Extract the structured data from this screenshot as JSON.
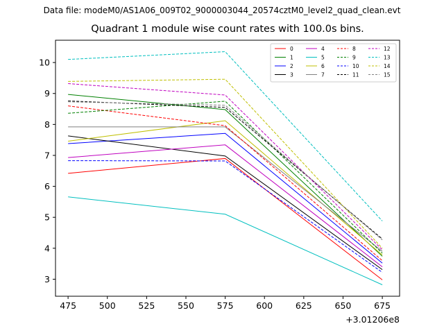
{
  "suptitle": "Data file: modeM0/AS1A06_009T02_9000003044_20574cztM0_level2_quad_clean.evt",
  "chart_data": {
    "type": "line",
    "title": "Quadrant 1 module wise count rates with 100.0s bins.",
    "xlabel": "",
    "ylabel": "",
    "x": [
      475,
      575,
      675
    ],
    "x_offset_label": "+3.01206e8",
    "xlim": [
      467,
      686
    ],
    "ylim": [
      2.45,
      10.72
    ],
    "xticks": [
      "475",
      "500",
      "525",
      "550",
      "575",
      "600",
      "625",
      "650",
      "675"
    ],
    "yticks": [
      "3",
      "4",
      "5",
      "6",
      "7",
      "8",
      "9",
      "10"
    ],
    "legend_position": "top-right",
    "series": [
      {
        "name": "0",
        "color": "#ff0000",
        "dash": "solid",
        "values": [
          6.42,
          6.9,
          2.98
        ]
      },
      {
        "name": "1",
        "color": "#008000",
        "dash": "solid",
        "values": [
          8.97,
          8.48,
          3.74
        ]
      },
      {
        "name": "2",
        "color": "#0000ff",
        "dash": "solid",
        "values": [
          7.38,
          7.71,
          3.52
        ]
      },
      {
        "name": "3",
        "color": "#000000",
        "dash": "solid",
        "values": [
          7.63,
          6.98,
          3.31
        ]
      },
      {
        "name": "4",
        "color": "#bf00bf",
        "dash": "solid",
        "values": [
          6.93,
          7.34,
          3.4
        ]
      },
      {
        "name": "5",
        "color": "#00bfbf",
        "dash": "solid",
        "values": [
          5.66,
          5.1,
          2.82
        ]
      },
      {
        "name": "6",
        "color": "#bfbf00",
        "dash": "solid",
        "values": [
          7.46,
          8.12,
          3.78
        ]
      },
      {
        "name": "7",
        "color": "#808080",
        "dash": "solid",
        "values": [
          7.92,
          7.92,
          3.9
        ]
      },
      {
        "name": "8",
        "color": "#ff0000",
        "dash": "dashed",
        "values": [
          8.6,
          7.96,
          3.6
        ]
      },
      {
        "name": "9",
        "color": "#008000",
        "dash": "dashed",
        "values": [
          8.36,
          8.75,
          3.84
        ]
      },
      {
        "name": "10",
        "color": "#0000ff",
        "dash": "dashed",
        "values": [
          6.83,
          6.82,
          3.22
        ]
      },
      {
        "name": "11",
        "color": "#000000",
        "dash": "dashed",
        "values": [
          8.76,
          8.55,
          4.3
        ]
      },
      {
        "name": "12",
        "color": "#bf00bf",
        "dash": "dashed",
        "values": [
          9.32,
          8.95,
          3.95
        ]
      },
      {
        "name": "13",
        "color": "#00bfbf",
        "dash": "dashed",
        "values": [
          10.1,
          10.35,
          4.88
        ]
      },
      {
        "name": "14",
        "color": "#bfbf00",
        "dash": "dashed",
        "values": [
          9.39,
          9.46,
          4.0
        ]
      },
      {
        "name": "15",
        "color": "#808080",
        "dash": "dashed",
        "values": [
          8.73,
          8.62,
          4.27
        ]
      }
    ]
  }
}
